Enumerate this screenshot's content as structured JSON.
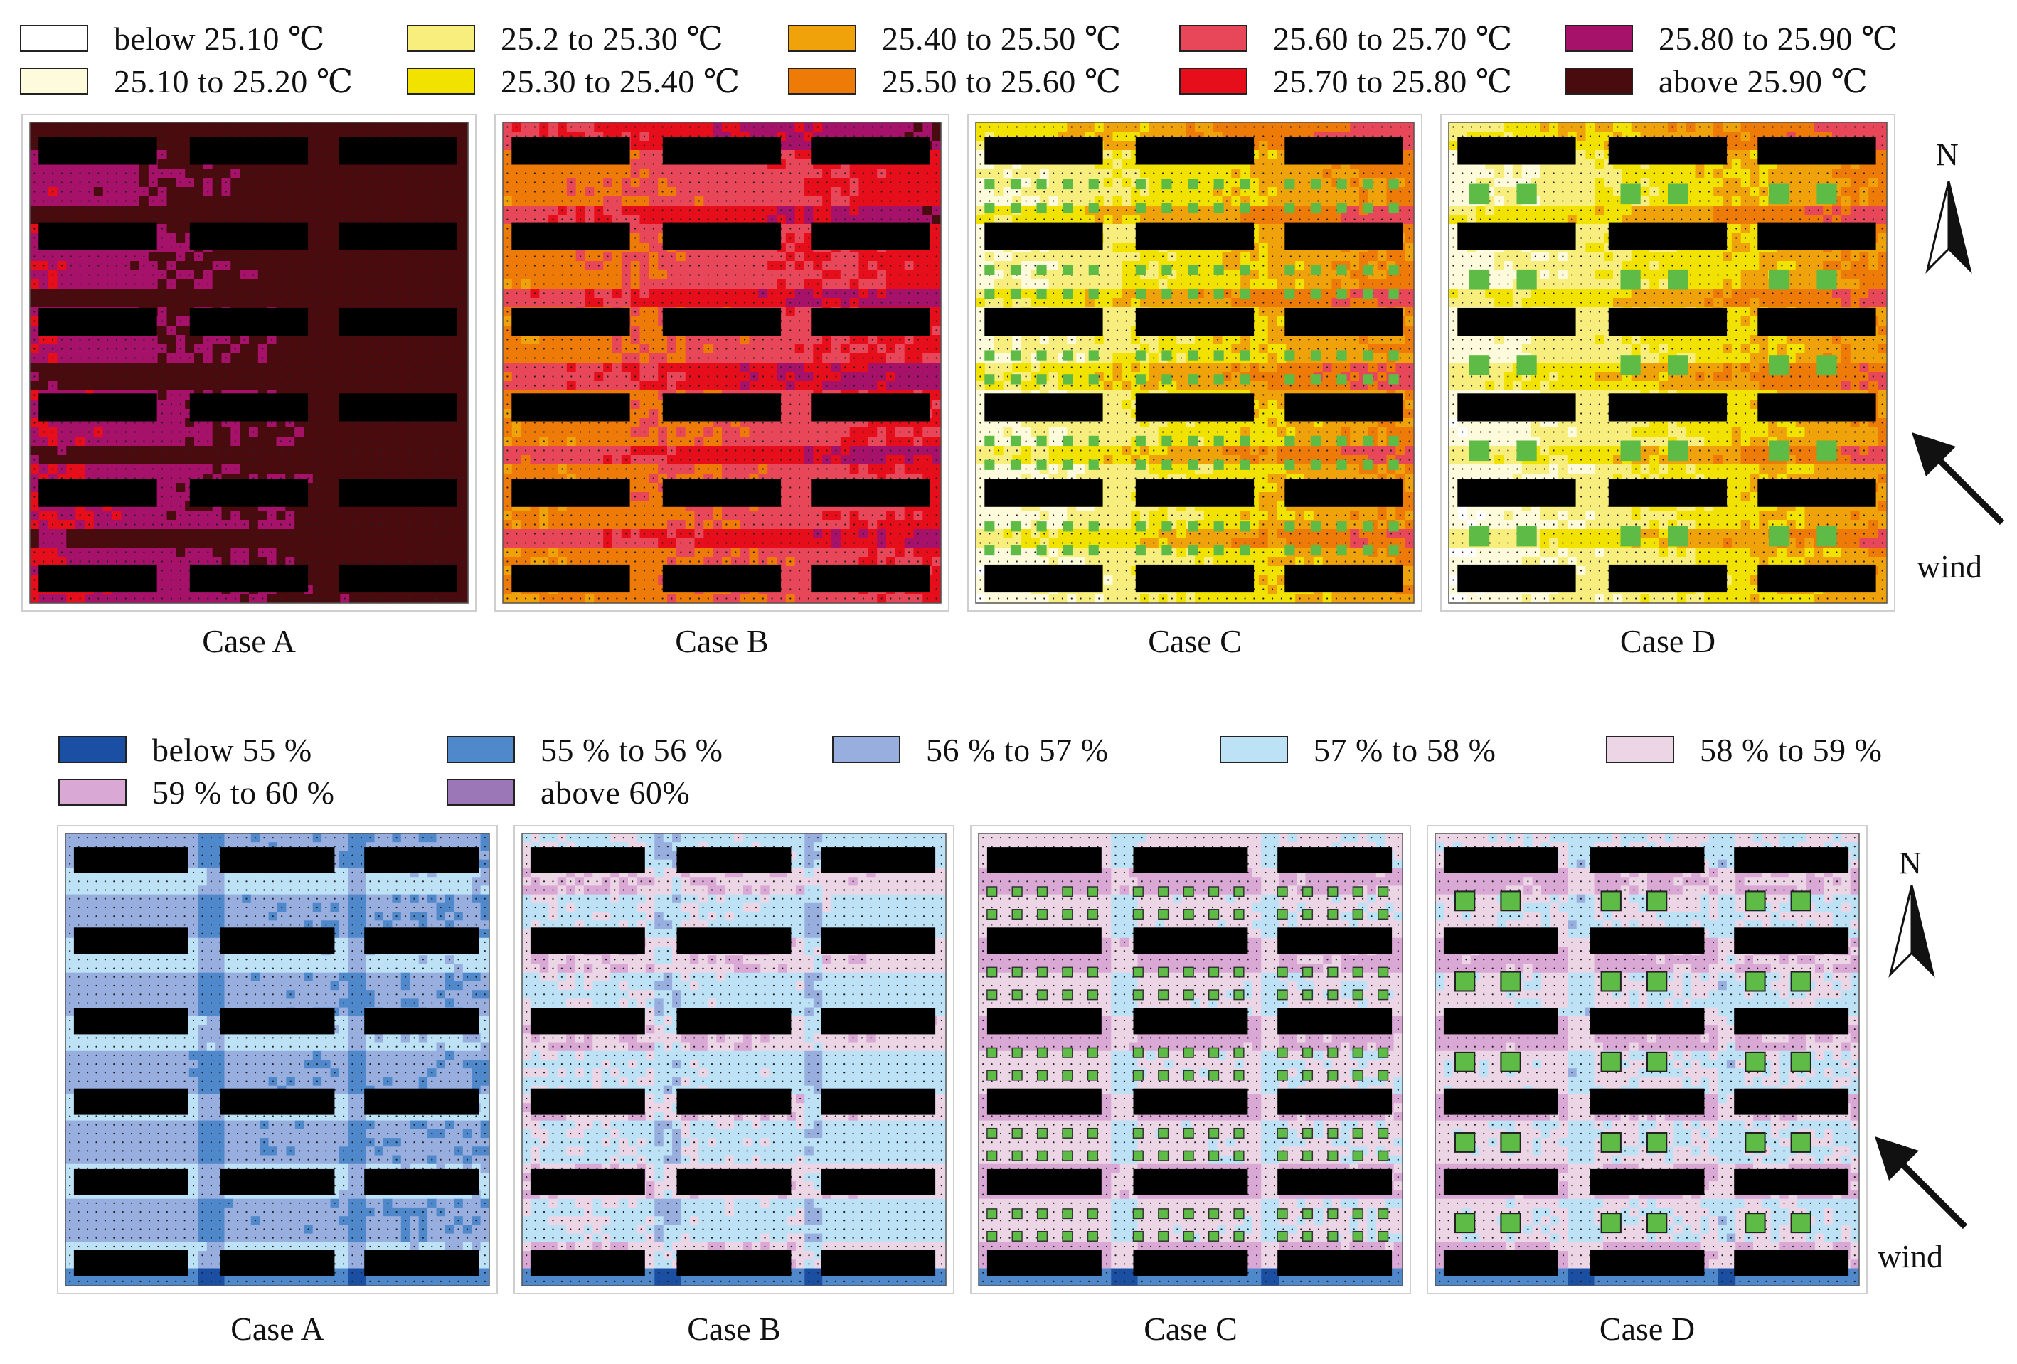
{
  "temperature_legend": [
    {
      "label": "below 25.10 ℃",
      "color": "#ffffff"
    },
    {
      "label": "25.10 to 25.20 ℃",
      "color": "#fdfbdc"
    },
    {
      "label": "25.2 to 25.30 ℃",
      "color": "#f7ee7e"
    },
    {
      "label": "25.30 to 25.40 ℃",
      "color": "#f2e200"
    },
    {
      "label": "25.40 to 25.50 ℃",
      "color": "#efa20a"
    },
    {
      "label": "25.50 to 25.60 ℃",
      "color": "#ee7a08"
    },
    {
      "label": "25.60 to 25.70 ℃",
      "color": "#e8475a"
    },
    {
      "label": "25.70 to 25.80 ℃",
      "color": "#e60e1b"
    },
    {
      "label": "25.80 to 25.90 ℃",
      "color": "#a6116a"
    },
    {
      "label": "above 25.90 ℃",
      "color": "#4a0b0f"
    }
  ],
  "humidity_legend": [
    {
      "label": "below 55 %",
      "color": "#1b4fa3"
    },
    {
      "label": "55 % to 56 %",
      "color": "#4f88cb"
    },
    {
      "label": "56 % to 57 %",
      "color": "#98aedf"
    },
    {
      "label": "57 % to 58 %",
      "color": "#bde1f5"
    },
    {
      "label": "58 % to 59 %",
      "color": "#ecd6e6"
    },
    {
      "label": "59 % to 60 %",
      "color": "#d9a8d4"
    },
    {
      "label": "above 60%",
      "color": "#9b77b8"
    }
  ],
  "captions": [
    "Case A",
    "Case B",
    "Case C",
    "Case D"
  ],
  "north_label": "N",
  "wind_label": "wind",
  "colors": {
    "building": "#000000",
    "tree": "#5dbb46",
    "dot": "#222222"
  }
}
